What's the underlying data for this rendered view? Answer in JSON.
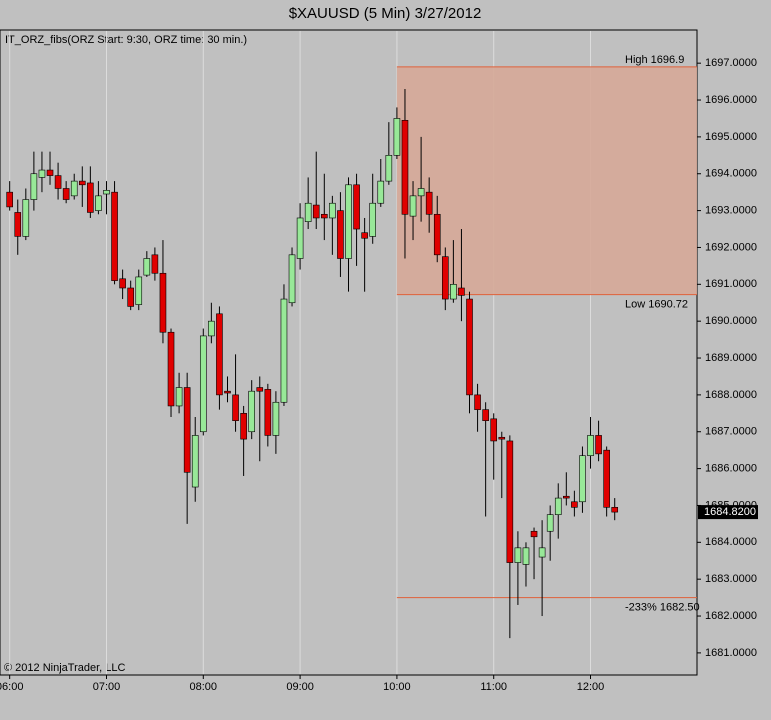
{
  "chart_data": {
    "type": "candlestick",
    "title": "$XAUUSD (5 Min)  3/27/2012",
    "indicator_label": "IT_ORZ_fibs(ORZ Start: 9:30, ORZ time: 30 min.)",
    "copyright": "© 2012 NinjaTrader, LLC",
    "up_color": "#98e898",
    "down_color": "#e00000",
    "grid": true,
    "x": [
      "06:00",
      "06:05",
      "06:10",
      "06:15",
      "06:20",
      "06:25",
      "06:30",
      "06:35",
      "06:40",
      "06:45",
      "06:50",
      "06:55",
      "07:00",
      "07:05",
      "07:10",
      "07:15",
      "07:20",
      "07:25",
      "07:30",
      "07:35",
      "07:40",
      "07:45",
      "07:50",
      "07:55",
      "08:00",
      "08:05",
      "08:10",
      "08:15",
      "08:20",
      "08:25",
      "08:30",
      "08:35",
      "08:40",
      "08:45",
      "08:50",
      "08:55",
      "09:00",
      "09:05",
      "09:10",
      "09:15",
      "09:20",
      "09:25",
      "09:30",
      "09:35",
      "09:40",
      "09:45",
      "09:50",
      "09:55",
      "10:00",
      "10:05",
      "10:10",
      "10:15",
      "10:20",
      "10:25",
      "10:30",
      "10:35",
      "10:40",
      "10:45",
      "10:50",
      "10:55",
      "11:00",
      "11:05",
      "11:10",
      "11:15",
      "11:20",
      "11:25",
      "11:30",
      "11:35",
      "11:40",
      "11:45",
      "11:50",
      "11:55",
      "12:00",
      "12:05",
      "12:10",
      "12:15"
    ],
    "open": [
      1693.5,
      1692.95,
      1692.3,
      1693.3,
      1693.9,
      1694.1,
      1693.95,
      1693.6,
      1693.4,
      1693.8,
      1693.75,
      1693.0,
      1693.45,
      1693.5,
      1691.15,
      1690.9,
      1690.45,
      1691.25,
      1691.8,
      1691.3,
      1689.7,
      1687.7,
      1688.2,
      1685.5,
      1687.0,
      1689.6,
      1690.2,
      1688.1,
      1688.0,
      1687.5,
      1687.0,
      1688.2,
      1688.15,
      1686.9,
      1687.8,
      1690.5,
      1691.7,
      1692.7,
      1693.15,
      1692.9,
      1692.8,
      1693.0,
      1691.7,
      1693.7,
      1692.4,
      1692.3,
      1693.2,
      1693.8,
      1694.5,
      1695.45,
      1692.85,
      1693.4,
      1693.5,
      1692.9,
      1691.75,
      1690.6,
      1690.9,
      1690.6,
      1688.0,
      1687.6,
      1687.35,
      1686.85,
      1686.75,
      1683.45,
      1683.4,
      1684.3,
      1683.6,
      1684.3,
      1684.75,
      1685.25,
      1685.1,
      1685.1,
      1686.35,
      1686.9,
      1686.5,
      1684.95
    ],
    "high": [
      1693.8,
      1693.3,
      1693.6,
      1694.6,
      1694.6,
      1694.6,
      1694.3,
      1693.8,
      1694.0,
      1694.2,
      1694.2,
      1693.8,
      1693.8,
      1693.8,
      1691.4,
      1691.1,
      1691.4,
      1691.9,
      1692.0,
      1692.2,
      1689.8,
      1688.6,
      1688.6,
      1687.4,
      1689.8,
      1690.5,
      1690.4,
      1688.5,
      1689.1,
      1687.7,
      1688.4,
      1688.5,
      1688.3,
      1688.1,
      1691.0,
      1692.0,
      1693.2,
      1693.9,
      1694.6,
      1694.0,
      1693.4,
      1693.5,
      1693.9,
      1694.0,
      1692.8,
      1694.0,
      1694.4,
      1695.4,
      1695.8,
      1696.3,
      1693.8,
      1695.0,
      1693.9,
      1693.4,
      1692.0,
      1692.2,
      1692.5,
      1690.8,
      1688.3,
      1687.8,
      1687.5,
      1687.0,
      1686.9,
      1684.3,
      1684.0,
      1684.4,
      1684.6,
      1685.0,
      1685.6,
      1685.9,
      1685.4,
      1686.6,
      1687.4,
      1687.3,
      1686.6,
      1685.2
    ],
    "low": [
      1693.0,
      1691.8,
      1692.2,
      1693.0,
      1693.5,
      1693.7,
      1693.3,
      1693.2,
      1693.3,
      1693.1,
      1692.8,
      1692.9,
      1692.9,
      1691.0,
      1690.6,
      1690.3,
      1690.3,
      1691.2,
      1691.1,
      1689.4,
      1687.4,
      1687.5,
      1684.5,
      1685.1,
      1686.9,
      1689.4,
      1687.6,
      1687.8,
      1687.0,
      1685.8,
      1686.8,
      1686.2,
      1686.6,
      1686.4,
      1687.7,
      1690.4,
      1691.4,
      1692.5,
      1692.5,
      1692.2,
      1691.8,
      1691.2,
      1690.8,
      1691.5,
      1690.8,
      1692.1,
      1693.1,
      1693.7,
      1694.4,
      1691.7,
      1692.2,
      1692.7,
      1692.4,
      1691.6,
      1690.3,
      1690.5,
      1690.0,
      1687.5,
      1687.0,
      1684.7,
      1685.7,
      1685.2,
      1681.4,
      1682.3,
      1682.8,
      1683.0,
      1682.0,
      1683.5,
      1684.1,
      1685.0,
      1684.7,
      1684.8,
      1686.0,
      1686.2,
      1684.7,
      1684.6
    ],
    "close": [
      1693.1,
      1692.3,
      1693.3,
      1694.0,
      1694.1,
      1693.95,
      1693.6,
      1693.3,
      1693.8,
      1693.7,
      1692.95,
      1693.4,
      1693.55,
      1691.1,
      1690.9,
      1690.4,
      1691.2,
      1691.7,
      1691.3,
      1689.7,
      1687.7,
      1688.2,
      1685.9,
      1686.9,
      1689.6,
      1690.0,
      1688.0,
      1688.05,
      1687.3,
      1686.8,
      1688.1,
      1688.1,
      1686.9,
      1687.8,
      1690.6,
      1691.8,
      1692.8,
      1693.2,
      1692.8,
      1692.8,
      1693.2,
      1691.7,
      1693.7,
      1692.5,
      1692.25,
      1693.2,
      1693.8,
      1694.5,
      1695.5,
      1692.9,
      1693.4,
      1693.6,
      1692.9,
      1691.8,
      1690.6,
      1691.0,
      1690.7,
      1688.0,
      1687.6,
      1687.3,
      1686.75,
      1686.8,
      1683.45,
      1683.85,
      1683.85,
      1684.15,
      1683.85,
      1684.75,
      1685.2,
      1685.2,
      1684.95,
      1686.35,
      1686.9,
      1686.4,
      1684.95,
      1684.82
    ],
    "xlim": [
      "05:54",
      "13:06"
    ],
    "xticks": [
      "06:00",
      "07:00",
      "08:00",
      "09:00",
      "10:00",
      "11:00",
      "12:00"
    ],
    "ylim": [
      1680.4,
      1697.9
    ],
    "yticks": [
      {
        "value": 1681,
        "label": "1681.0000"
      },
      {
        "value": 1682,
        "label": "1682.0000"
      },
      {
        "value": 1683,
        "label": "1683.0000"
      },
      {
        "value": 1684,
        "label": "1684.0000"
      },
      {
        "value": 1685,
        "label": "1685.0000"
      },
      {
        "value": 1686,
        "label": "1686.0000"
      },
      {
        "value": 1687,
        "label": "1687.0000"
      },
      {
        "value": 1688,
        "label": "1688.0000"
      },
      {
        "value": 1689,
        "label": "1689.0000"
      },
      {
        "value": 1690,
        "label": "1690.0000"
      },
      {
        "value": 1691,
        "label": "1691.0000"
      },
      {
        "value": 1692,
        "label": "1692.0000"
      },
      {
        "value": 1693,
        "label": "1693.0000"
      },
      {
        "value": 1694,
        "label": "1694.0000"
      },
      {
        "value": 1695,
        "label": "1695.0000"
      },
      {
        "value": 1696,
        "label": "1696.0000"
      },
      {
        "value": 1697,
        "label": "1697.0000"
      }
    ],
    "last_price": {
      "value": 1684.82,
      "label": "1684.8200"
    },
    "orz": {
      "start": "10:00",
      "color": "#e0603a",
      "fill": "#d6a898",
      "high": {
        "value": 1696.9,
        "label": "High 1696.9"
      },
      "low": {
        "value": 1690.72,
        "label": "Low 1690.72"
      },
      "fib": {
        "value": 1682.5,
        "label": "-233% 1682.50"
      }
    }
  }
}
